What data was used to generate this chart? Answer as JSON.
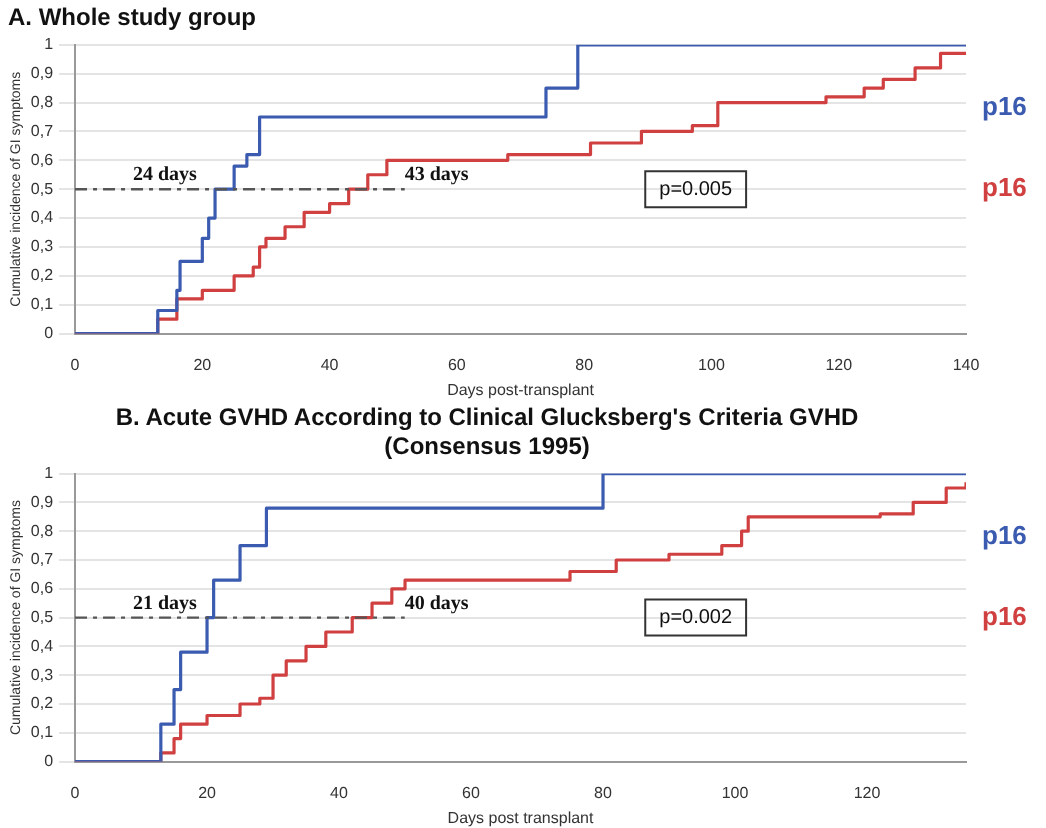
{
  "chart_data": [
    {
      "type": "step",
      "title": "A. Whole study group",
      "xlabel": "Days post-transplant",
      "ylabel": "Cumulative incidence of GI symptoms",
      "xlim": [
        0,
        140
      ],
      "xticks": [
        0,
        20,
        40,
        60,
        80,
        100,
        120,
        140
      ],
      "ylim": [
        0,
        1
      ],
      "yticks": [
        {
          "value": 0,
          "label": "0"
        },
        {
          "value": 0.1,
          "label": "0,1"
        },
        {
          "value": 0.2,
          "label": "0,2"
        },
        {
          "value": 0.3,
          "label": "0,3"
        },
        {
          "value": 0.4,
          "label": "0,4"
        },
        {
          "value": 0.5,
          "label": "0,5"
        },
        {
          "value": 0.6,
          "label": "0,6"
        },
        {
          "value": 0.7,
          "label": "0,7"
        },
        {
          "value": 0.8,
          "label": "0,8"
        },
        {
          "value": 0.9,
          "label": "0,9"
        },
        {
          "value": 1,
          "label": "1"
        }
      ],
      "grid": "y",
      "legend": false,
      "series": [
        {
          "name": "p16",
          "color": "#3a5bb0",
          "x": [
            0,
            13,
            16,
            16.5,
            20,
            21,
            22,
            25,
            27,
            29,
            74,
            79,
            140
          ],
          "values": [
            0,
            0.08,
            0.15,
            0.25,
            0.33,
            0.4,
            0.5,
            0.58,
            0.62,
            0.75,
            0.85,
            1,
            1
          ]
        },
        {
          "name": "p16",
          "color": "#d04040",
          "x": [
            0,
            13,
            16,
            20,
            25,
            28,
            29,
            30,
            33,
            36,
            40,
            43,
            46,
            49,
            68,
            81,
            89,
            97,
            101,
            118,
            124,
            127,
            132,
            136,
            140
          ],
          "values": [
            0,
            0.05,
            0.12,
            0.15,
            0.2,
            0.23,
            0.3,
            0.33,
            0.37,
            0.42,
            0.45,
            0.5,
            0.55,
            0.6,
            0.62,
            0.66,
            0.7,
            0.72,
            0.8,
            0.82,
            0.85,
            0.88,
            0.92,
            0.97,
            0.97
          ]
        }
      ],
      "ref_lines": [
        {
          "axis": "y",
          "value": 0.5,
          "line_style": "dashed",
          "color": "#555555"
        }
      ],
      "annotations": [
        "24 days",
        "43 days",
        "p=0.005"
      ]
    },
    {
      "type": "step",
      "title": "B. Acute GVHD According to Clinical Glucksberg's Criteria GVHD",
      "subtitle": "(Consensus 1995)",
      "xlabel": "Days post transplant",
      "ylabel": "Cumulative incidence of GI symptoms",
      "xlim": [
        0,
        135
      ],
      "xticks": [
        0,
        20,
        40,
        60,
        80,
        100,
        120
      ],
      "ylim": [
        0,
        1
      ],
      "yticks": [
        {
          "value": 0,
          "label": "0"
        },
        {
          "value": 0.1,
          "label": "0,1"
        },
        {
          "value": 0.2,
          "label": "0,2"
        },
        {
          "value": 0.3,
          "label": "0,3"
        },
        {
          "value": 0.4,
          "label": "0,4"
        },
        {
          "value": 0.5,
          "label": "0,5"
        },
        {
          "value": 0.6,
          "label": "0,6"
        },
        {
          "value": 0.7,
          "label": "0,7"
        },
        {
          "value": 0.8,
          "label": "0,8"
        },
        {
          "value": 0.9,
          "label": "0,9"
        },
        {
          "value": 1,
          "label": "1"
        }
      ],
      "grid": "y",
      "legend": false,
      "series": [
        {
          "name": "p16",
          "color": "#3a5bb0",
          "x": [
            0,
            13,
            15,
            16,
            20,
            21,
            25,
            29,
            80,
            135
          ],
          "values": [
            0,
            0.13,
            0.25,
            0.38,
            0.5,
            0.63,
            0.75,
            0.88,
            1,
            1
          ]
        },
        {
          "name": "p16",
          "color": "#d04040",
          "x": [
            0,
            13,
            15,
            16,
            20,
            25,
            28,
            30,
            32,
            35,
            38,
            42,
            45,
            48,
            50,
            75,
            82,
            90,
            98,
            101,
            102,
            122,
            127,
            132,
            135
          ],
          "values": [
            0,
            0.03,
            0.08,
            0.13,
            0.16,
            0.2,
            0.22,
            0.3,
            0.35,
            0.4,
            0.45,
            0.5,
            0.55,
            0.6,
            0.63,
            0.66,
            0.7,
            0.72,
            0.75,
            0.8,
            0.85,
            0.86,
            0.9,
            0.95,
            0.97
          ]
        }
      ],
      "ref_lines": [
        {
          "axis": "y",
          "value": 0.5,
          "line_style": "dashed",
          "color": "#555555"
        }
      ],
      "annotations": [
        "21 days",
        "40 days",
        "p=0.002"
      ]
    }
  ]
}
